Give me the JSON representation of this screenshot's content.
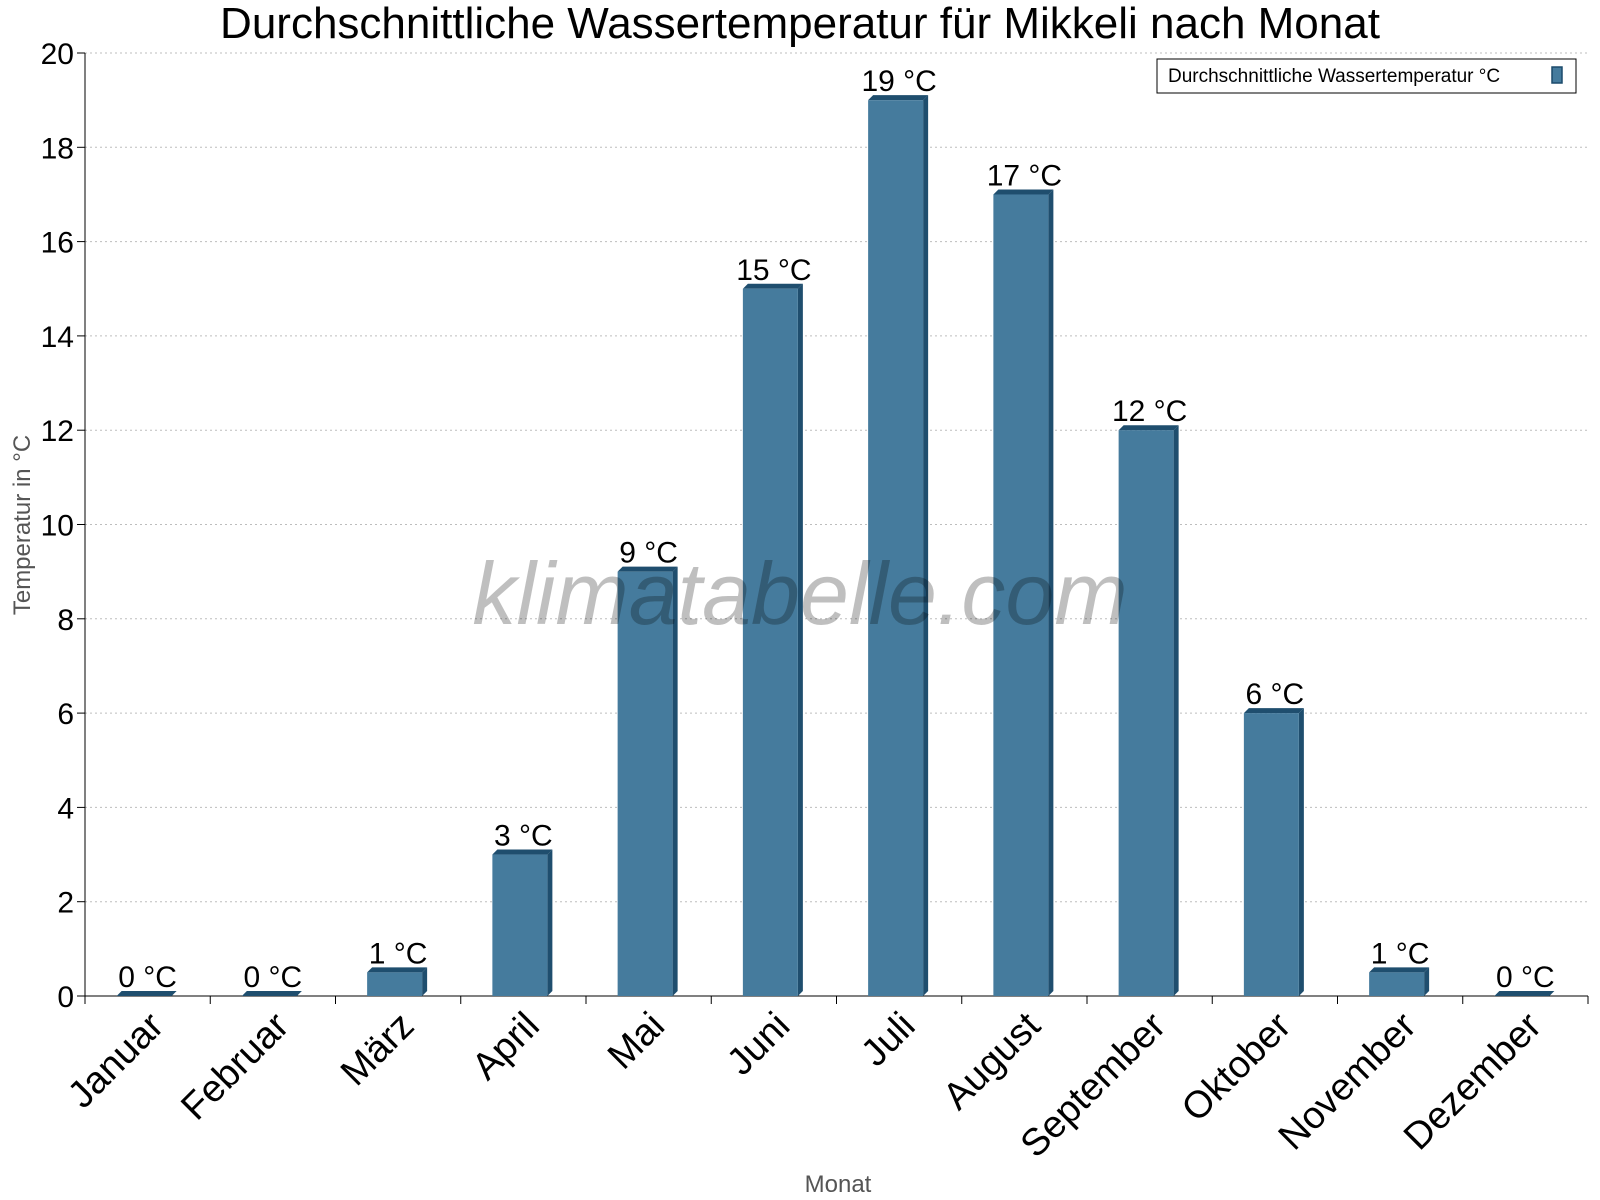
{
  "chart_data": {
    "type": "bar",
    "title": "Durchschnittliche Wassertemperatur für Mikkeli nach Monat",
    "xlabel": "Monat",
    "ylabel": "Temperatur in °C",
    "ylim": [
      0,
      20
    ],
    "yticks": [
      0,
      2,
      4,
      6,
      8,
      10,
      12,
      14,
      16,
      18,
      20
    ],
    "grid": true,
    "legend_position": "top-right",
    "categories": [
      "Januar",
      "Februar",
      "März",
      "April",
      "Mai",
      "Juni",
      "Juli",
      "August",
      "September",
      "Oktober",
      "November",
      "Dezember"
    ],
    "series": [
      {
        "name": "Durchschnittliche Wassertemperatur °C",
        "color": "#457b9d",
        "values": [
          0,
          0,
          0.5,
          3,
          9,
          15,
          19,
          17,
          12,
          6,
          0.5,
          0
        ],
        "labels": [
          "0 °C",
          "0 °C",
          "1 °C",
          "3 °C",
          "9 °C",
          "15 °C",
          "19 °C",
          "17 °C",
          "12 °C",
          "6 °C",
          "1 °C",
          "0 °C"
        ]
      }
    ]
  },
  "watermark": "klimatabelle.com"
}
